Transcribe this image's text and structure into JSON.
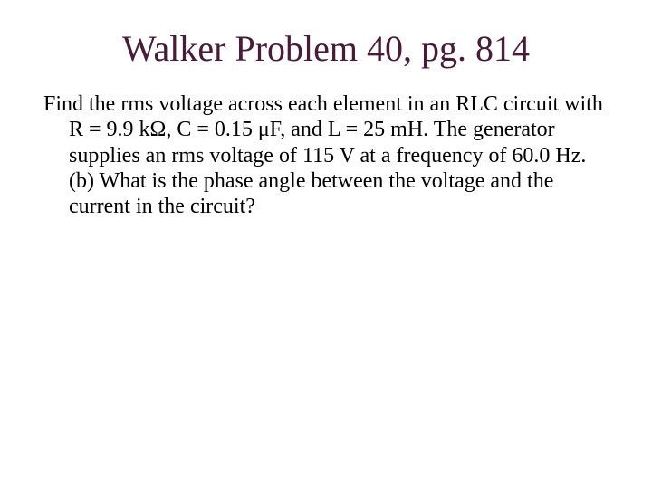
{
  "title": {
    "text": "Walker Problem 40, pg. 814",
    "color": "#4a1a3a",
    "fontsize": 40
  },
  "body": {
    "text": "Find the rms voltage across each element in an RLC circuit with R = 9.9 kΩ, C = 0.15 μF, and L = 25 mH.  The generator supplies an rms voltage of 115 V at a frequency of 60.0 Hz. (b) What is the phase angle between the voltage and the current in the circuit?",
    "color": "#000000",
    "fontsize": 24
  },
  "background_color": "#ffffff"
}
